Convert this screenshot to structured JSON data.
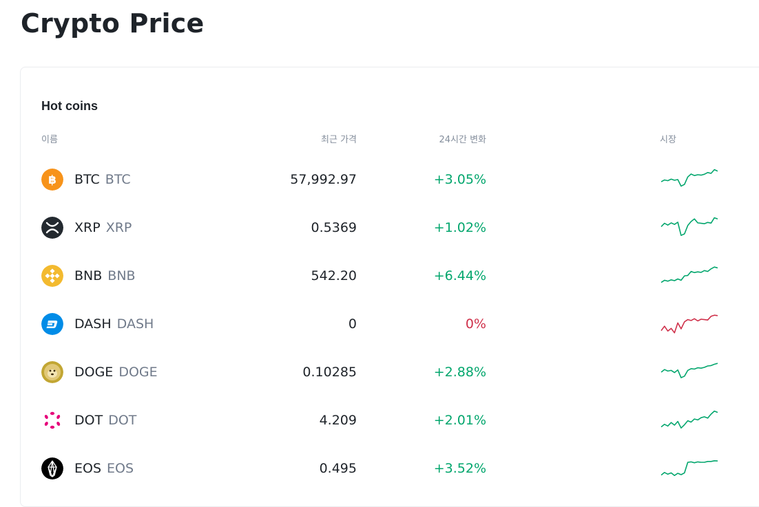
{
  "page": {
    "title": "Crypto Price"
  },
  "hot_coins": {
    "title": "Hot coins",
    "columns": {
      "name": "이름",
      "price": "최근 가격",
      "change": "24시간 변화",
      "market": "시장"
    },
    "colors": {
      "up": "#03a66d",
      "down": "#cf304a"
    },
    "rows": [
      {
        "name": "BTC",
        "symbol": "BTC",
        "price": "57,992.97",
        "change": "+3.05%",
        "trend": "up",
        "icon": "bitcoin-icon",
        "spark": [
          0.4,
          0.48,
          0.45,
          0.52,
          0.47,
          0.5,
          0.2,
          0.28,
          0.62,
          0.75,
          0.68,
          0.72,
          0.7,
          0.74,
          0.82,
          0.78,
          0.95,
          0.88
        ]
      },
      {
        "name": "XRP",
        "symbol": "XRP",
        "price": "0.5369",
        "change": "+1.02%",
        "trend": "up",
        "icon": "xrp-icon",
        "spark": [
          0.55,
          0.7,
          0.62,
          0.72,
          0.65,
          0.75,
          0.15,
          0.22,
          0.6,
          0.78,
          0.9,
          0.72,
          0.7,
          0.68,
          0.74,
          0.71,
          0.95,
          0.9
        ]
      },
      {
        "name": "BNB",
        "symbol": "BNB",
        "price": "542.20",
        "change": "+6.44%",
        "trend": "up",
        "icon": "bnb-icon",
        "spark": [
          0.2,
          0.3,
          0.26,
          0.32,
          0.28,
          0.36,
          0.3,
          0.5,
          0.52,
          0.7,
          0.65,
          0.68,
          0.66,
          0.74,
          0.7,
          0.82,
          0.9,
          0.86
        ]
      },
      {
        "name": "DASH",
        "symbol": "DASH",
        "price": "0",
        "change": "0%",
        "trend": "down",
        "icon": "dash-icon",
        "spark": [
          0.2,
          0.4,
          0.18,
          0.3,
          0.1,
          0.55,
          0.28,
          0.6,
          0.7,
          0.66,
          0.74,
          0.64,
          0.72,
          0.7,
          0.68,
          0.85,
          0.9,
          0.88
        ]
      },
      {
        "name": "DOGE",
        "symbol": "DOGE",
        "price": "0.10285",
        "change": "+2.88%",
        "trend": "up",
        "icon": "doge-icon",
        "spark": [
          0.5,
          0.62,
          0.55,
          0.58,
          0.48,
          0.6,
          0.25,
          0.32,
          0.58,
          0.66,
          0.64,
          0.7,
          0.68,
          0.72,
          0.78,
          0.8,
          0.86,
          0.9
        ]
      },
      {
        "name": "DOT",
        "symbol": "DOT",
        "price": "4.209",
        "change": "+2.01%",
        "trend": "up",
        "icon": "polkadot-icon",
        "spark": [
          0.2,
          0.32,
          0.24,
          0.4,
          0.28,
          0.45,
          0.15,
          0.3,
          0.48,
          0.42,
          0.56,
          0.52,
          0.62,
          0.66,
          0.6,
          0.78,
          0.92,
          0.86
        ]
      },
      {
        "name": "EOS",
        "symbol": "EOS",
        "price": "0.495",
        "change": "+3.52%",
        "trend": "up",
        "icon": "eos-icon",
        "spark": [
          0.2,
          0.32,
          0.24,
          0.3,
          0.18,
          0.28,
          0.22,
          0.3,
          0.78,
          0.8,
          0.76,
          0.8,
          0.78,
          0.78,
          0.82,
          0.82,
          0.85,
          0.84
        ]
      }
    ]
  }
}
